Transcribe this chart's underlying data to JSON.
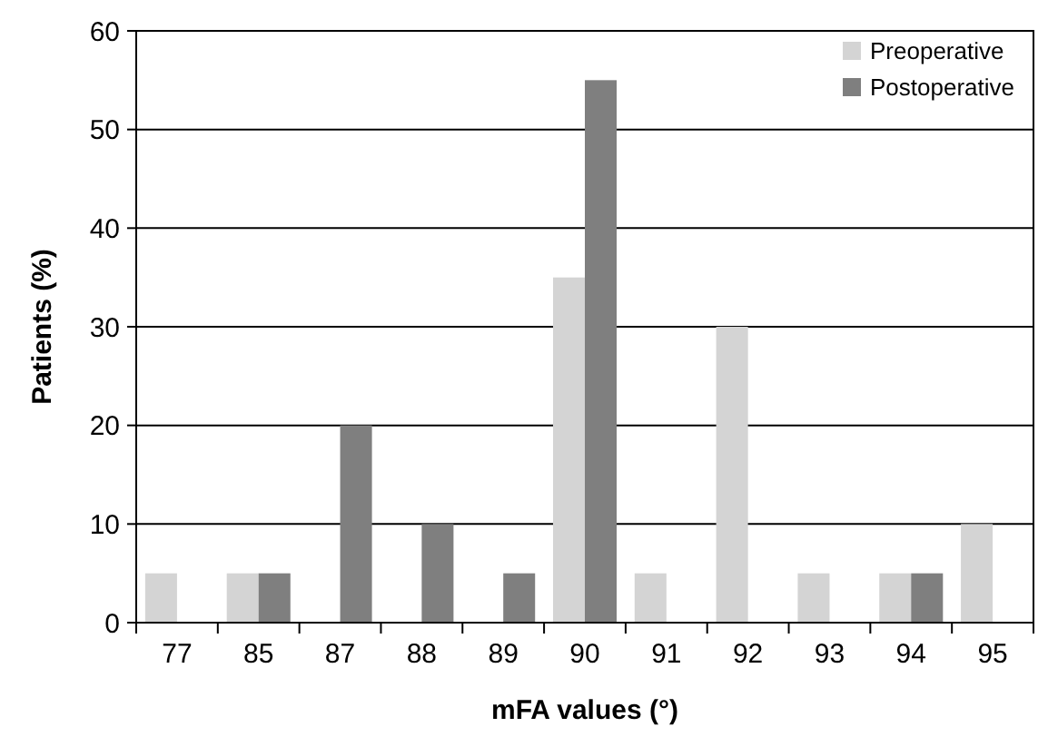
{
  "chart_data": {
    "type": "bar",
    "xlabel": "mFA values (°)",
    "ylabel": "Patients (%)",
    "categories": [
      "77",
      "85",
      "87",
      "88",
      "89",
      "90",
      "91",
      "92",
      "93",
      "94",
      "95"
    ],
    "series": [
      {
        "name": "Preoperative",
        "color": "#d4d4d4",
        "values": [
          5,
          5,
          null,
          null,
          null,
          35,
          5,
          30,
          5,
          5,
          10
        ]
      },
      {
        "name": "Postoperative",
        "color": "#7f7f7f",
        "values": [
          null,
          5,
          20,
          10,
          5,
          55,
          null,
          null,
          null,
          5,
          null
        ]
      }
    ],
    "ylim": [
      0,
      60
    ],
    "yticks": [
      0,
      10,
      20,
      30,
      40,
      50,
      60
    ],
    "grid": "y",
    "legend": "top right"
  }
}
